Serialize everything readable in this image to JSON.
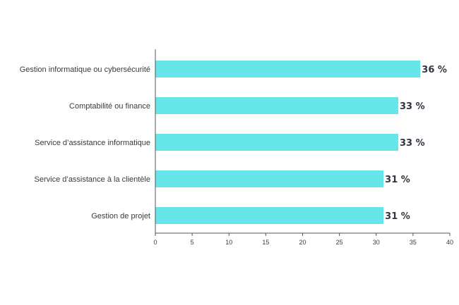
{
  "chart_data": {
    "type": "bar",
    "orientation": "horizontal",
    "categories": [
      "Gestion informatique ou cybersécurité",
      "Comptabilité ou finance",
      "Service d’assistance informatique",
      "Service d’assistance à la clientèle",
      "Gestion de projet"
    ],
    "values": [
      36,
      33,
      33,
      31,
      31
    ],
    "value_labels": [
      "36 %",
      "33 %",
      "33 %",
      "31 %",
      "31 %"
    ],
    "xlim": [
      0,
      40
    ],
    "xticks": [
      0,
      5,
      10,
      15,
      20,
      25,
      30,
      35,
      40
    ],
    "title": "",
    "xlabel": "",
    "ylabel": "",
    "grid": false,
    "bar_color": "#66e6e8",
    "axis_color": "#555555"
  }
}
